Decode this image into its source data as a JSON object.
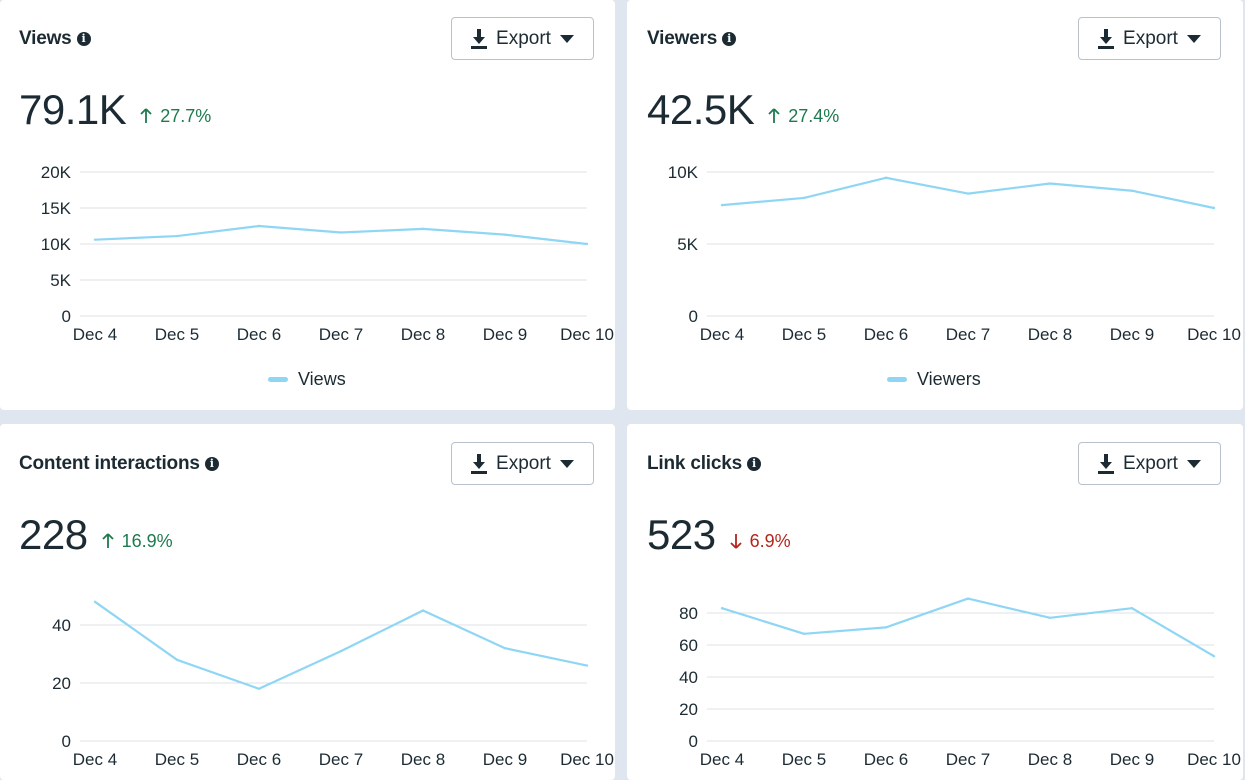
{
  "colors": {
    "line": "#8fd6f5",
    "grid": "#dde1e5",
    "up": "#1e7a4f",
    "down": "#b3261e"
  },
  "icons": {
    "info": "info-icon",
    "download": "download-icon",
    "caret": "caret-down-icon",
    "up_arrow": "arrow-up-icon",
    "down_arrow": "arrow-down-icon"
  },
  "cards": [
    {
      "title": "Views",
      "export_label": "Export",
      "value": "79.1K",
      "change": "27.7%",
      "direction": "up",
      "legend": "Views",
      "chart_data": {
        "type": "line",
        "x": [
          "Dec 4",
          "Dec 5",
          "Dec 6",
          "Dec 7",
          "Dec 8",
          "Dec 9",
          "Dec 10"
        ],
        "series": [
          {
            "name": "Views",
            "values": [
              10600,
              11100,
              12500,
              11600,
              12100,
              11300,
              10000
            ]
          }
        ],
        "ylim": [
          0,
          20000
        ],
        "yticks": [
          0,
          5000,
          10000,
          15000,
          20000
        ],
        "ytick_labels": [
          "0",
          "5K",
          "10K",
          "15K",
          "20K"
        ],
        "grid": true,
        "legend_position": "bottom"
      }
    },
    {
      "title": "Viewers",
      "export_label": "Export",
      "value": "42.5K",
      "change": "27.4%",
      "direction": "up",
      "legend": "Viewers",
      "chart_data": {
        "type": "line",
        "x": [
          "Dec 4",
          "Dec 5",
          "Dec 6",
          "Dec 7",
          "Dec 8",
          "Dec 9",
          "Dec 10"
        ],
        "series": [
          {
            "name": "Viewers",
            "values": [
              7700,
              8200,
              9600,
              8500,
              9200,
              8700,
              7500
            ]
          }
        ],
        "ylim": [
          0,
          10000
        ],
        "yticks": [
          0,
          5000,
          10000
        ],
        "ytick_labels": [
          "0",
          "5K",
          "10K"
        ],
        "grid": true,
        "legend_position": "bottom"
      }
    },
    {
      "title": "Content interactions",
      "export_label": "Export",
      "value": "228",
      "change": "16.9%",
      "direction": "up",
      "legend": "",
      "chart_data": {
        "type": "line",
        "x": [
          "Dec 4",
          "Dec 5",
          "Dec 6",
          "Dec 7",
          "Dec 8",
          "Dec 9",
          "Dec 10"
        ],
        "series": [
          {
            "values": [
              48,
              28,
              18,
              31,
              45,
              32,
              26
            ]
          }
        ],
        "ylim": [
          0,
          40
        ],
        "yticks": [
          0,
          20,
          40
        ],
        "ytick_labels": [
          "0",
          "20",
          "40"
        ],
        "grid": true,
        "legend_position": "bottom"
      }
    },
    {
      "title": "Link clicks",
      "export_label": "Export",
      "value": "523",
      "change": "6.9%",
      "direction": "down",
      "legend": "",
      "chart_data": {
        "type": "line",
        "x": [
          "Dec 4",
          "Dec 5",
          "Dec 6",
          "Dec 7",
          "Dec 8",
          "Dec 9",
          "Dec 10"
        ],
        "series": [
          {
            "values": [
              83,
              67,
              71,
              89,
              77,
              83,
              53
            ]
          }
        ],
        "ylim": [
          0,
          80
        ],
        "yticks": [
          0,
          20,
          40,
          60,
          80
        ],
        "ytick_labels": [
          "0",
          "20",
          "40",
          "60",
          "80"
        ],
        "grid": true,
        "legend_position": "bottom"
      }
    }
  ]
}
